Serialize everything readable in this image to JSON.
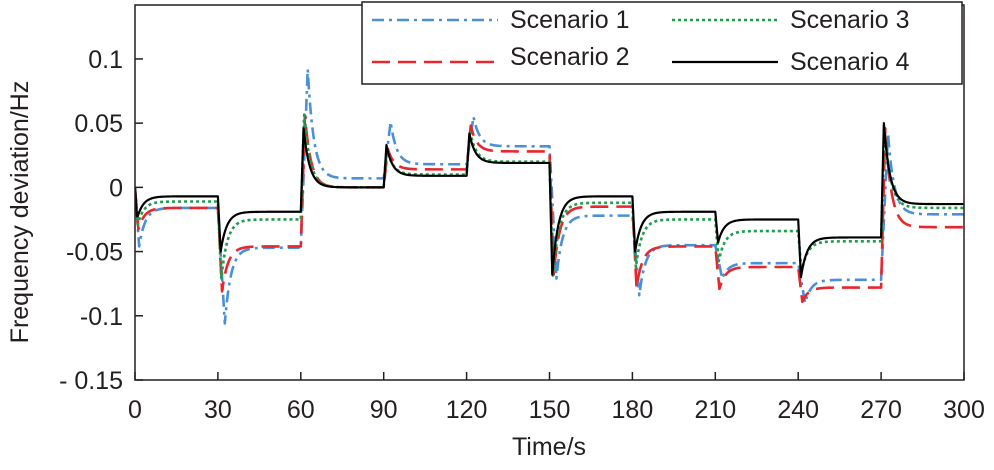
{
  "chart_data": {
    "type": "line",
    "title": "",
    "xlabel": "Time/s",
    "ylabel": "Frequency deviation/Hz",
    "xlim": [
      0,
      300
    ],
    "ylim": [
      -0.15,
      0.15
    ],
    "xticks": [
      0,
      30,
      60,
      90,
      120,
      150,
      180,
      210,
      240,
      270,
      300
    ],
    "yticks": [
      0.1,
      0.05,
      0,
      -0.05,
      -0.1,
      -0.15
    ],
    "xtick_labels": [
      "0",
      "30",
      "60",
      "90",
      "120",
      "150",
      "180",
      "210",
      "240",
      "270",
      "300"
    ],
    "ytick_labels": [
      "0.1",
      "0.05",
      "0",
      "-0.05",
      "-0.1",
      "- 0.15"
    ],
    "grid": false,
    "legend_position": "top-right",
    "series": [
      {
        "name": "Scenario 1",
        "color": "#4a90d9",
        "dash": "dashdot",
        "segments": [
          {
            "start": 0,
            "peak": -0.046,
            "peak_t": 1.5,
            "steady": -0.016
          },
          {
            "start": 30,
            "peak": -0.106,
            "peak_t": 2.5,
            "steady": -0.047
          },
          {
            "start": 60,
            "peak": 0.092,
            "peak_t": 2.5,
            "steady": 0.007
          },
          {
            "start": 90,
            "peak": 0.051,
            "peak_t": 2.5,
            "steady": 0.018
          },
          {
            "start": 120,
            "peak": 0.055,
            "peak_t": 2.5,
            "steady": 0.032
          },
          {
            "start": 150,
            "peak": -0.071,
            "peak_t": 2.5,
            "steady": -0.022
          },
          {
            "start": 180,
            "peak": -0.084,
            "peak_t": 2.5,
            "steady": -0.045
          },
          {
            "start": 210,
            "peak": -0.071,
            "peak_t": 2.5,
            "steady": -0.059
          },
          {
            "start": 240,
            "peak": -0.09,
            "peak_t": 2.5,
            "steady": -0.072
          },
          {
            "start": 270,
            "peak": 0.042,
            "peak_t": 2.5,
            "steady": -0.021
          }
        ]
      },
      {
        "name": "Scenario 2",
        "color": "#e8262d",
        "dash": "dashed",
        "segments": [
          {
            "start": 0,
            "peak": -0.033,
            "peak_t": 1.2,
            "steady": -0.016
          },
          {
            "start": 30,
            "peak": -0.081,
            "peak_t": 1.5,
            "steady": -0.046
          },
          {
            "start": 60,
            "peak": 0.056,
            "peak_t": 1.5,
            "steady": 0.0
          },
          {
            "start": 90,
            "peak": 0.03,
            "peak_t": 1.5,
            "steady": 0.014
          },
          {
            "start": 120,
            "peak": 0.048,
            "peak_t": 1.5,
            "steady": 0.028
          },
          {
            "start": 150,
            "peak": -0.068,
            "peak_t": 1.5,
            "steady": -0.015
          },
          {
            "start": 180,
            "peak": -0.078,
            "peak_t": 1.5,
            "steady": -0.046
          },
          {
            "start": 210,
            "peak": -0.079,
            "peak_t": 1.5,
            "steady": -0.062
          },
          {
            "start": 240,
            "peak": -0.089,
            "peak_t": 1.5,
            "steady": -0.078
          },
          {
            "start": 270,
            "peak": 0.046,
            "peak_t": 1.5,
            "steady": -0.031
          }
        ]
      },
      {
        "name": "Scenario 3",
        "color": "#1e9e4a",
        "dash": "dotted",
        "segments": [
          {
            "start": 0,
            "peak": -0.029,
            "peak_t": 1.0,
            "steady": -0.011
          },
          {
            "start": 30,
            "peak": -0.072,
            "peak_t": 1.2,
            "steady": -0.025
          },
          {
            "start": 60,
            "peak": 0.058,
            "peak_t": 1.2,
            "steady": 0.0
          },
          {
            "start": 90,
            "peak": 0.03,
            "peak_t": 1.2,
            "steady": 0.01
          },
          {
            "start": 120,
            "peak": 0.044,
            "peak_t": 1.2,
            "steady": 0.02
          },
          {
            "start": 150,
            "peak": -0.07,
            "peak_t": 1.2,
            "steady": -0.012
          },
          {
            "start": 180,
            "peak": -0.063,
            "peak_t": 1.2,
            "steady": -0.025
          },
          {
            "start": 210,
            "peak": -0.058,
            "peak_t": 1.2,
            "steady": -0.034
          },
          {
            "start": 240,
            "peak": -0.066,
            "peak_t": 1.2,
            "steady": -0.042
          },
          {
            "start": 270,
            "peak": 0.047,
            "peak_t": 1.2,
            "steady": -0.016
          }
        ]
      },
      {
        "name": "Scenario 4",
        "color": "#000000",
        "dash": "solid",
        "segments": [
          {
            "start": 0,
            "peak": -0.024,
            "peak_t": 0.8,
            "steady": -0.007
          },
          {
            "start": 30,
            "peak": -0.05,
            "peak_t": 1.0,
            "steady": -0.019
          },
          {
            "start": 60,
            "peak": 0.046,
            "peak_t": 1.0,
            "steady": 0.0
          },
          {
            "start": 90,
            "peak": 0.033,
            "peak_t": 1.0,
            "steady": 0.009
          },
          {
            "start": 120,
            "peak": 0.042,
            "peak_t": 1.0,
            "steady": 0.019
          },
          {
            "start": 150,
            "peak": -0.068,
            "peak_t": 1.0,
            "steady": -0.007
          },
          {
            "start": 180,
            "peak": -0.05,
            "peak_t": 1.0,
            "steady": -0.019
          },
          {
            "start": 210,
            "peak": -0.043,
            "peak_t": 1.0,
            "steady": -0.025
          },
          {
            "start": 240,
            "peak": -0.07,
            "peak_t": 1.0,
            "steady": -0.039
          },
          {
            "start": 270,
            "peak": 0.05,
            "peak_t": 1.0,
            "steady": -0.013
          }
        ]
      }
    ],
    "initial_value": 0
  }
}
